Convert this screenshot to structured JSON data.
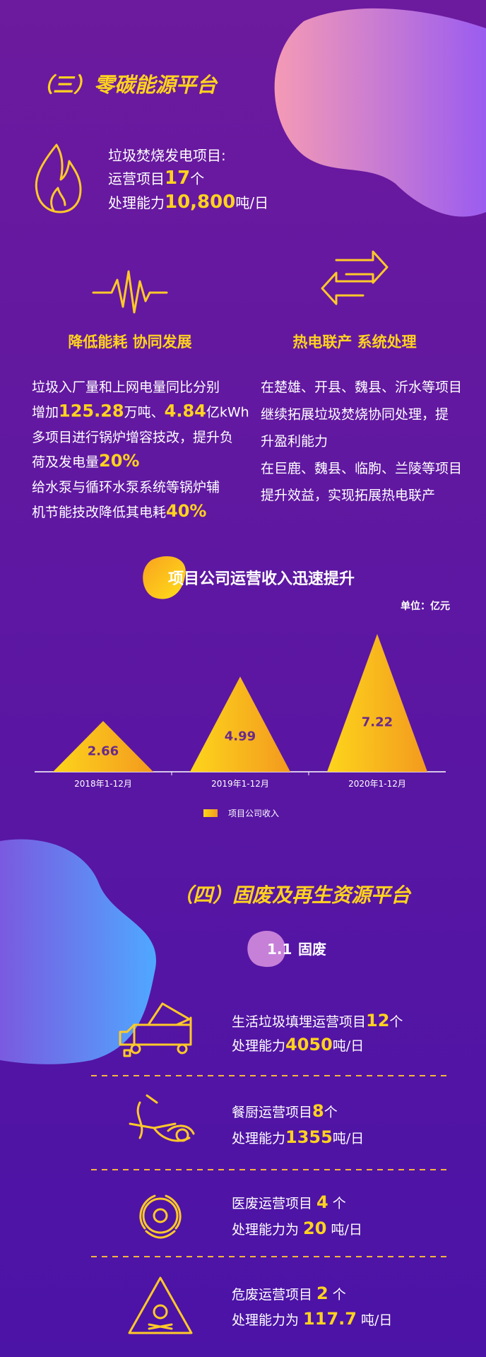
{
  "section3": {
    "title": "（三）零碳能源平台",
    "intro": [
      [
        {
          "t": "垃圾焚烧发电项目:"
        }
      ],
      [
        {
          "t": "运营项目"
        },
        {
          "t": "17",
          "em": true
        },
        {
          "t": "个"
        }
      ],
      [
        {
          "t": "处理能力"
        },
        {
          "t": "10,800",
          "em": true
        },
        {
          "t": "吨/日"
        }
      ]
    ],
    "left": {
      "heading": "降低能耗 协同发展",
      "lines": [
        [
          {
            "t": "垃圾入厂量和上网电量同比分别"
          }
        ],
        [
          {
            "t": "增加"
          },
          {
            "t": "125.28",
            "em": true
          },
          {
            "t": "万吨、"
          },
          {
            "t": "4.84",
            "em": true
          },
          {
            "t": "亿kWh"
          }
        ],
        [
          {
            "t": "多项目进行锅炉增容技改，提升负"
          }
        ],
        [
          {
            "t": "荷及发电量"
          },
          {
            "t": "20%",
            "em": true
          }
        ],
        [
          {
            "t": "给水泵与循环水泵系统等锅炉辅"
          }
        ],
        [
          {
            "t": "机节能技改降低其电耗"
          },
          {
            "t": "40%",
            "em": true
          }
        ]
      ]
    },
    "right": {
      "heading": "热电联产 系统处理",
      "lines": [
        [
          {
            "t": "在楚雄、开县、魏县、沂水等项目"
          }
        ],
        [
          {
            "t": "继续拓展垃圾焚烧协同处理，提"
          }
        ],
        [
          {
            "t": "升盈利能力"
          }
        ],
        [
          {
            "t": "在巨鹿、魏县、临朐、兰陵等项目"
          }
        ],
        [
          {
            "t": "提升效益，实现拓展热电联产"
          }
        ]
      ]
    }
  },
  "chart_data": {
    "type": "triangle",
    "title": "项目公司运营收入迅速提升",
    "unit": "单位：亿元",
    "categories": [
      "2018年1-12月",
      "2019年1-12月",
      "2020年1-12月"
    ],
    "series": [
      {
        "name": "项目公司收入",
        "color": "#fdd51c",
        "values": [
          2.66,
          4.99,
          7.22
        ]
      }
    ]
  },
  "section4": {
    "title": "（四）固废及再生资源平台",
    "sub_no": "1.1",
    "sub_title": "固废",
    "items": [
      [
        [
          {
            "t": "生活垃圾填埋运营项目"
          },
          {
            "t": "12",
            "em": true
          },
          {
            "t": "个"
          }
        ],
        [
          {
            "t": "处理能力"
          },
          {
            "t": "4050",
            "em": true
          },
          {
            "t": "吨/日"
          }
        ]
      ],
      [
        [
          {
            "t": "餐厨运营项目"
          },
          {
            "t": "8",
            "em": true
          },
          {
            "t": "个"
          }
        ],
        [
          {
            "t": "处理能力"
          },
          {
            "t": "1355",
            "em": true
          },
          {
            "t": "吨/日"
          }
        ]
      ],
      [
        [
          {
            "t": "医废运营项目 "
          },
          {
            "t": "4",
            "em": true
          },
          {
            "t": " 个"
          }
        ],
        [
          {
            "t": "处理能力为 "
          },
          {
            "t": "20",
            "em": true
          },
          {
            "t": " 吨/日"
          }
        ]
      ],
      [
        [
          {
            "t": "危废运营项目 "
          },
          {
            "t": "2",
            "em": true
          },
          {
            "t": " 个"
          }
        ],
        [
          {
            "t": "处理能力为 "
          },
          {
            "t": "117.7",
            "em": true
          },
          {
            "t": " 吨/日"
          }
        ]
      ]
    ]
  }
}
